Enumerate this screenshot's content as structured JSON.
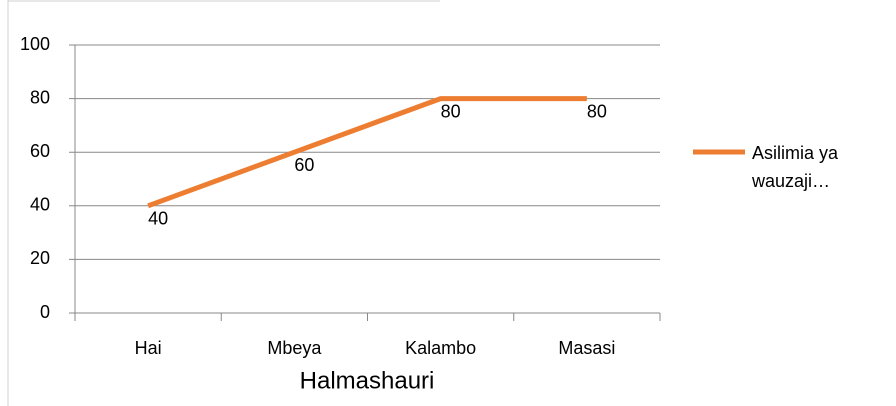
{
  "chart_data": {
    "type": "line",
    "x_label": "Halmashauri",
    "categories": [
      "Hai",
      "Mbeya",
      "Kalambo",
      "Masasi"
    ],
    "series": [
      {
        "name": "Asilimia ya wauzaji…",
        "color": "#ed7d31",
        "values": [
          40,
          60,
          80,
          80
        ]
      }
    ],
    "ylim": [
      0,
      100
    ],
    "yticks": [
      0,
      20,
      40,
      60,
      80,
      100
    ],
    "grid": true,
    "legend": "right",
    "data_labels": true
  }
}
